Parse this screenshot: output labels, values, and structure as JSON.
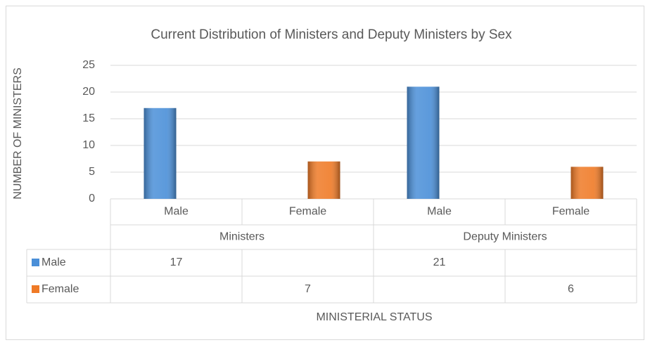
{
  "chart_data": {
    "type": "bar",
    "title": "Current Distribution of Ministers and Deputy Ministers by Sex",
    "y_label": "NUMBER OF MINISTERS",
    "x_label": "MINISTERIAL STATUS",
    "categories": [
      "Male",
      "Female",
      "Male",
      "Female"
    ],
    "groups": [
      "Ministers",
      "Deputy Ministers"
    ],
    "series": [
      {
        "name": "Male",
        "color": "#4a8fd8",
        "values": [
          17,
          null,
          21,
          null
        ]
      },
      {
        "name": "Female",
        "color": "#ef7a26",
        "values": [
          null,
          7,
          null,
          6
        ]
      }
    ],
    "ylim": [
      0,
      25
    ],
    "yticks": [
      0,
      5,
      10,
      15,
      20,
      25
    ],
    "grid": true
  }
}
